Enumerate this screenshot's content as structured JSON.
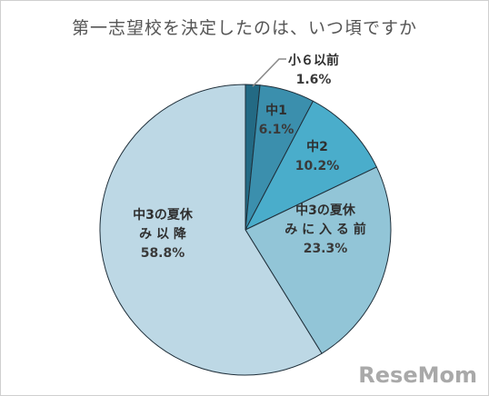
{
  "chart_data": {
    "type": "pie",
    "title": "第一志望校を決定したのは、いつ頃ですか",
    "slices": [
      {
        "label_lines": [
          "小６以前"
        ],
        "value": 1.6,
        "value_label": "1.6%",
        "color": "#236a84"
      },
      {
        "label_lines": [
          "中1"
        ],
        "value": 6.1,
        "value_label": "6.1%",
        "color": "#3b8fad"
      },
      {
        "label_lines": [
          "中2"
        ],
        "value": 10.2,
        "value_label": "10.2%",
        "color": "#4aadcb"
      },
      {
        "label_lines": [
          "中3の夏休",
          "み に 入 る 前"
        ],
        "value": 23.3,
        "value_label": "23.3%",
        "color": "#92c5d7"
      },
      {
        "label_lines": [
          "中3の夏休",
          "み 以 降"
        ],
        "value": 58.8,
        "value_label": "58.8%",
        "color": "#bdd8e5"
      }
    ]
  },
  "watermark": {
    "text": "ReseMom"
  }
}
